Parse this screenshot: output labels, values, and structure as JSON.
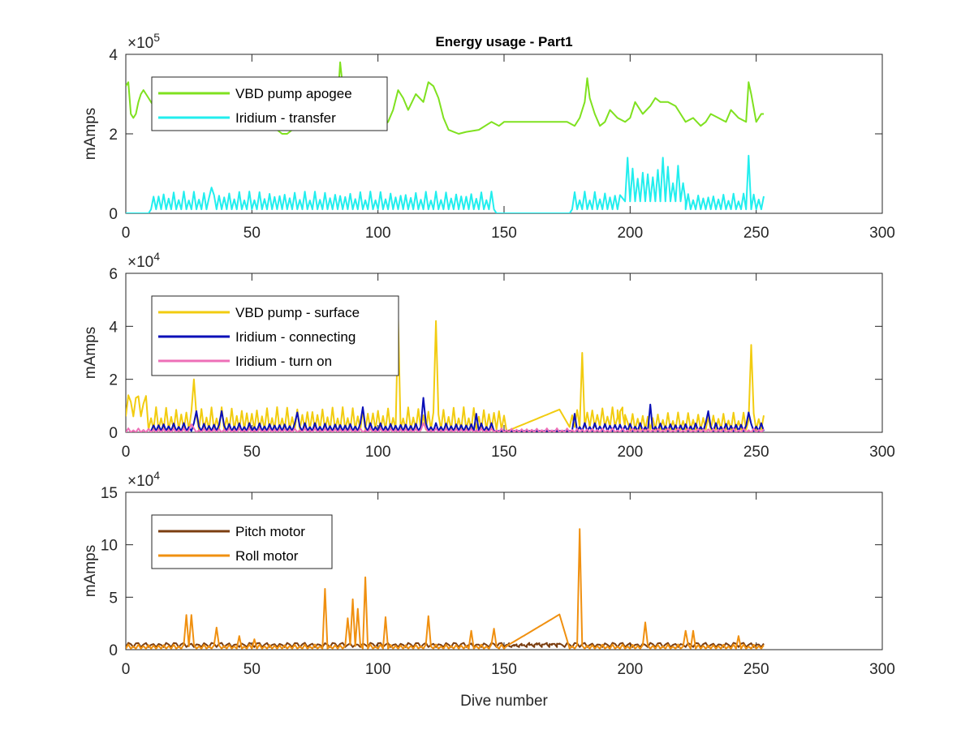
{
  "figure": {
    "title": "Energy usage - Part1",
    "xlabel": "Dive number"
  },
  "chart_data": [
    {
      "type": "line",
      "title": "Energy usage - Part1",
      "xlabel": "",
      "ylabel": "mAmps",
      "exponent_base": "×10",
      "exponent": "5",
      "xlim": [
        0,
        300
      ],
      "ylim": [
        0,
        4
      ],
      "xticks": [
        "0",
        "50",
        "100",
        "150",
        "200",
        "250",
        "300"
      ],
      "yticks": [
        "0",
        "2",
        "4"
      ],
      "legend_position": "top-left",
      "series": [
        {
          "name": "VBD pump apogee",
          "color": "#7fe11f",
          "x": [
            0,
            1,
            2,
            3,
            4,
            5,
            6,
            7,
            8,
            9,
            10,
            12,
            15,
            18,
            20,
            25,
            30,
            35,
            40,
            45,
            50,
            55,
            60,
            62,
            64,
            66,
            68,
            70,
            75,
            80,
            84,
            85,
            86,
            88,
            90,
            95,
            100,
            102,
            104,
            106,
            108,
            110,
            112,
            115,
            118,
            120,
            122,
            124,
            126,
            128,
            130,
            132,
            135,
            140,
            145,
            148,
            150,
            155,
            160,
            165,
            170,
            175,
            178,
            180,
            182,
            183,
            184,
            186,
            188,
            190,
            192,
            195,
            198,
            200,
            202,
            205,
            208,
            210,
            212,
            215,
            218,
            220,
            222,
            225,
            228,
            230,
            232,
            235,
            238,
            240,
            243,
            246,
            247,
            248,
            250,
            252,
            253
          ],
          "values": [
            3.2,
            3.3,
            2.5,
            2.4,
            2.5,
            2.8,
            3.0,
            3.1,
            3.0,
            2.9,
            2.8,
            2.6,
            2.4,
            2.2,
            2.6,
            2.5,
            2.4,
            2.3,
            2.5,
            2.4,
            2.2,
            2.3,
            2.1,
            2.0,
            2.0,
            2.1,
            2.3,
            2.4,
            2.6,
            2.9,
            2.8,
            3.8,
            3.2,
            2.8,
            2.7,
            2.4,
            2.3,
            2.2,
            2.3,
            2.6,
            3.1,
            2.9,
            2.6,
            3.0,
            2.8,
            3.3,
            3.2,
            2.9,
            2.4,
            2.1,
            2.05,
            2.0,
            2.05,
            2.1,
            2.3,
            2.2,
            2.3,
            2.3,
            2.3,
            2.3,
            2.3,
            2.3,
            2.2,
            2.4,
            2.8,
            3.4,
            2.9,
            2.5,
            2.2,
            2.3,
            2.6,
            2.4,
            2.3,
            2.4,
            2.8,
            2.5,
            2.7,
            2.9,
            2.8,
            2.8,
            2.7,
            2.5,
            2.3,
            2.4,
            2.2,
            2.3,
            2.5,
            2.4,
            2.3,
            2.6,
            2.4,
            2.3,
            3.3,
            3.0,
            2.3,
            2.5,
            2.5
          ]
        },
        {
          "name": "Iridium - transfer",
          "color": "#22eeee",
          "pattern": [
            {
              "from": 0,
              "to": 9,
              "base": 0,
              "amplitude": 0,
              "period": 2
            },
            {
              "from": 10,
              "to": 146,
              "base": 0.1,
              "amplitude": 0.45,
              "period": 2
            },
            {
              "from": 147,
              "to": 176,
              "base": 0,
              "amplitude": 0,
              "period": 2
            },
            {
              "from": 177,
              "to": 196,
              "base": 0.1,
              "amplitude": 0.45,
              "period": 2
            },
            {
              "from": 198,
              "to": 222,
              "base": 0.3,
              "amplitude": 0.9,
              "period": 2
            },
            {
              "from": 222,
              "to": 253,
              "base": 0.1,
              "amplitude": 0.4,
              "period": 2
            }
          ],
          "peaks": [
            {
              "x": 34,
              "y": 0.65
            },
            {
              "x": 199,
              "y": 1.4
            },
            {
              "x": 213,
              "y": 1.4
            },
            {
              "x": 247,
              "y": 1.45
            }
          ]
        }
      ]
    },
    {
      "type": "line",
      "title": "",
      "xlabel": "",
      "ylabel": "mAmps",
      "exponent_base": "×10",
      "exponent": "4",
      "xlim": [
        0,
        300
      ],
      "ylim": [
        0,
        6
      ],
      "xticks": [
        "0",
        "50",
        "100",
        "150",
        "200",
        "250",
        "300"
      ],
      "yticks": [
        "0",
        "2",
        "4",
        "6"
      ],
      "legend_position": "top-left",
      "series": [
        {
          "name": "VBD pump - surface",
          "color": "#f2cc10",
          "pattern": [
            {
              "from": 0,
              "to": 8,
              "base": 0.6,
              "amplitude": 0.8,
              "period": 3
            },
            {
              "from": 9,
              "to": 150,
              "base": 0.1,
              "amplitude": 0.85,
              "period": 2
            },
            {
              "from": 176,
              "to": 198,
              "base": 0.2,
              "amplitude": 0.75,
              "period": 2
            },
            {
              "from": 200,
              "to": 253,
              "base": 0.1,
              "amplitude": 0.65,
              "period": 2
            }
          ],
          "links": [
            [
              150,
              0.0,
              173,
              0.9
            ],
            [
              194,
              0.9,
              199,
              0.6
            ]
          ],
          "peaks": [
            {
              "x": 27,
              "y": 2.0
            },
            {
              "x": 108,
              "y": 4.3
            },
            {
              "x": 123,
              "y": 4.2
            },
            {
              "x": 181,
              "y": 3.0
            },
            {
              "x": 248,
              "y": 3.3
            }
          ]
        },
        {
          "name": "Iridium - connecting",
          "color": "#0a0fb8",
          "pattern": [
            {
              "from": 10,
              "to": 146,
              "base": 0.05,
              "amplitude": 0.3,
              "period": 2
            },
            {
              "from": 177,
              "to": 253,
              "base": 0.05,
              "amplitude": 0.3,
              "period": 2
            }
          ],
          "peaks": [
            {
              "x": 28,
              "y": 0.8
            },
            {
              "x": 38,
              "y": 0.8
            },
            {
              "x": 68,
              "y": 0.75
            },
            {
              "x": 94,
              "y": 0.95
            },
            {
              "x": 118,
              "y": 1.3
            },
            {
              "x": 139,
              "y": 0.7
            },
            {
              "x": 178,
              "y": 0.7
            },
            {
              "x": 208,
              "y": 1.05
            },
            {
              "x": 231,
              "y": 0.8
            },
            {
              "x": 247,
              "y": 0.75
            }
          ]
        },
        {
          "name": "Iridium - turn on",
          "color": "#ee6fb7",
          "pattern": [
            {
              "from": 0,
              "to": 253,
              "base": 0.0,
              "amplitude": 0.15,
              "period": 2
            }
          ],
          "peaks": [
            {
              "x": 26,
              "y": 0.3
            },
            {
              "x": 118,
              "y": 0.35
            }
          ]
        }
      ]
    },
    {
      "type": "line",
      "title": "",
      "xlabel": "Dive number",
      "ylabel": "mAmps",
      "exponent_base": "×10",
      "exponent": "4",
      "xlim": [
        0,
        300
      ],
      "ylim": [
        0,
        15
      ],
      "xticks": [
        "0",
        "50",
        "100",
        "150",
        "200",
        "250",
        "300"
      ],
      "yticks": [
        "0",
        "5",
        "10",
        "15"
      ],
      "legend_position": "top-left",
      "series": [
        {
          "name": "Pitch motor",
          "color": "#7b3e10",
          "pattern": [
            {
              "from": 0,
              "to": 253,
              "base": 0.25,
              "amplitude": 0.4,
              "period": 3
            }
          ],
          "links": [
            [
              150,
              0.3,
              173,
              0.6
            ]
          ],
          "peaks": []
        },
        {
          "name": "Roll motor",
          "color": "#f09010",
          "pattern": [
            {
              "from": 0,
              "to": 150,
              "base": 0.1,
              "amplitude": 0.4,
              "period": 2
            },
            {
              "from": 176,
              "to": 253,
              "base": 0.1,
              "amplitude": 0.4,
              "period": 2
            }
          ],
          "links": [
            [
              150,
              0.2,
              173,
              3.5
            ]
          ],
          "peaks": [
            {
              "x": 24,
              "y": 3.3
            },
            {
              "x": 26,
              "y": 3.3
            },
            {
              "x": 36,
              "y": 2.1
            },
            {
              "x": 45,
              "y": 1.3
            },
            {
              "x": 51,
              "y": 1.0
            },
            {
              "x": 79,
              "y": 5.8
            },
            {
              "x": 88,
              "y": 3.0
            },
            {
              "x": 90,
              "y": 4.8
            },
            {
              "x": 92,
              "y": 3.9
            },
            {
              "x": 95,
              "y": 6.9
            },
            {
              "x": 103,
              "y": 3.1
            },
            {
              "x": 120,
              "y": 3.2
            },
            {
              "x": 137,
              "y": 1.8
            },
            {
              "x": 146,
              "y": 2.0
            },
            {
              "x": 180,
              "y": 11.5
            },
            {
              "x": 206,
              "y": 2.6
            },
            {
              "x": 222,
              "y": 1.8
            },
            {
              "x": 225,
              "y": 1.8
            },
            {
              "x": 243,
              "y": 1.3
            }
          ]
        }
      ]
    }
  ]
}
